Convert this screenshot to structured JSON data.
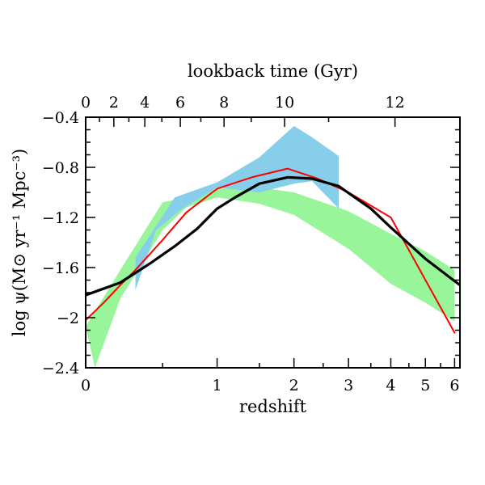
{
  "chart_data": {
    "type": "line",
    "xlabel": "redshift",
    "x2label": "lookback time (Gyr)",
    "ylabel": "log ψ(M⊙ yr⁻¹ Mpc⁻³)",
    "ylim": [
      -2.4,
      -0.4
    ],
    "x_axis_scale": "log(1+z)",
    "xlim": [
      0,
      6.2
    ],
    "x_ticks": [
      0,
      1,
      2,
      3,
      4,
      5,
      6
    ],
    "x_tick_labels": [
      "0",
      "1",
      "2",
      "3",
      "4",
      "5",
      "6"
    ],
    "y_ticks": [
      -2.4,
      -2,
      -1.6,
      -1.2,
      -0.8,
      -0.4
    ],
    "y_tick_labels": [
      "−2.4",
      "−2",
      "−1.6",
      "−1.2",
      "−0.8",
      "−0.4"
    ],
    "top_ticks_gyr": [
      0,
      2,
      4,
      6,
      8,
      10,
      12
    ],
    "top_tick_labels": [
      "0",
      "2",
      "4",
      "6",
      "8",
      "10",
      "12"
    ],
    "series": [
      {
        "kind": "band",
        "color": "#99f599",
        "upper": [
          [
            0.0,
            -2.07
          ],
          [
            0.2,
            -1.62
          ],
          [
            0.5,
            -1.08
          ],
          [
            0.8,
            -1.02
          ],
          [
            1.0,
            -0.97
          ],
          [
            1.5,
            -0.96
          ],
          [
            2.0,
            -1.0
          ],
          [
            3.0,
            -1.15
          ],
          [
            4.0,
            -1.33
          ],
          [
            5.0,
            -1.47
          ],
          [
            6.0,
            -1.62
          ]
        ],
        "lower": [
          [
            6.0,
            -2.03
          ],
          [
            5.0,
            -1.88
          ],
          [
            4.0,
            -1.73
          ],
          [
            3.0,
            -1.45
          ],
          [
            2.0,
            -1.18
          ],
          [
            1.5,
            -1.09
          ],
          [
            1.0,
            -1.04
          ],
          [
            0.7,
            -1.12
          ],
          [
            0.5,
            -1.3
          ],
          [
            0.2,
            -1.85
          ],
          [
            0.05,
            -2.4
          ]
        ]
      },
      {
        "kind": "band",
        "color": "#87ceeb",
        "upper": [
          [
            0.3,
            -1.52
          ],
          [
            0.6,
            -1.04
          ],
          [
            1.0,
            -0.92
          ],
          [
            1.5,
            -0.72
          ],
          [
            2.0,
            -0.47
          ],
          [
            2.3,
            -0.56
          ],
          [
            2.8,
            -0.71
          ]
        ],
        "lower": [
          [
            2.8,
            -1.13
          ],
          [
            2.3,
            -0.91
          ],
          [
            2.0,
            -0.93
          ],
          [
            1.5,
            -1.0
          ],
          [
            1.0,
            -0.96
          ],
          [
            0.65,
            -1.14
          ],
          [
            0.45,
            -1.3
          ],
          [
            0.3,
            -1.78
          ]
        ]
      },
      {
        "kind": "line",
        "color": "#ff0000",
        "width": 2,
        "points": [
          [
            0.0,
            -2.02
          ],
          [
            0.1,
            -1.88
          ],
          [
            0.2,
            -1.74
          ],
          [
            0.3,
            -1.62
          ],
          [
            0.5,
            -1.38
          ],
          [
            0.7,
            -1.16
          ],
          [
            1.0,
            -0.97
          ],
          [
            1.4,
            -0.88
          ],
          [
            1.9,
            -0.81
          ],
          [
            2.4,
            -0.89
          ],
          [
            3.0,
            -1.0
          ],
          [
            4.0,
            -1.2
          ],
          [
            6.0,
            -2.12
          ]
        ]
      },
      {
        "kind": "line",
        "color": "#000000",
        "width": 3.2,
        "points": [
          [
            0.0,
            -1.82
          ],
          [
            0.2,
            -1.72
          ],
          [
            0.4,
            -1.57
          ],
          [
            0.6,
            -1.43
          ],
          [
            0.8,
            -1.29
          ],
          [
            1.0,
            -1.13
          ],
          [
            1.2,
            -1.04
          ],
          [
            1.5,
            -0.93
          ],
          [
            1.9,
            -0.88
          ],
          [
            2.3,
            -0.89
          ],
          [
            2.8,
            -0.95
          ],
          [
            3.5,
            -1.13
          ],
          [
            4.0,
            -1.28
          ],
          [
            5.0,
            -1.53
          ],
          [
            6.2,
            -1.74
          ]
        ]
      }
    ]
  }
}
